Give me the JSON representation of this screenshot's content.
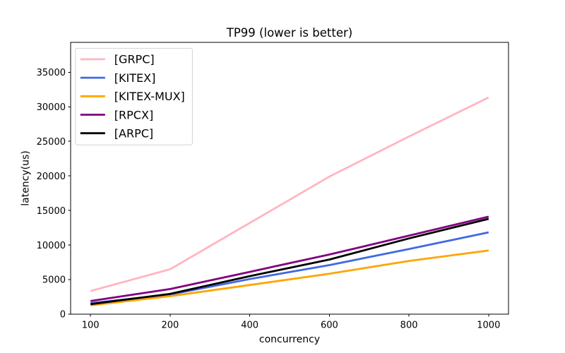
{
  "figure": {
    "background": "#ffffff",
    "frame_color": "#000000",
    "legend_border_color": "#d3d3d3"
  },
  "chart_data": {
    "type": "line",
    "title": "TP99 (lower is better)",
    "xlabel": "concurrency",
    "ylabel": "latency(us)",
    "categories": [
      "100",
      "200",
      "400",
      "600",
      "800",
      "1000"
    ],
    "yticks": [
      "0",
      "5000",
      "10000",
      "15000",
      "20000",
      "25000",
      "30000",
      "35000"
    ],
    "ytick_values": [
      0,
      5000,
      10000,
      15000,
      20000,
      25000,
      30000,
      35000
    ],
    "ylim": [
      0,
      39320
    ],
    "grid": false,
    "legend_position": "upper left",
    "series": [
      {
        "label": "[GRPC]",
        "color": "#ffb6c1",
        "values": [
          3350,
          6500,
          13200,
          19900,
          25700,
          31350
        ]
      },
      {
        "label": "[KITEX]",
        "color": "#4169e1",
        "values": [
          1600,
          2850,
          5080,
          7100,
          9420,
          11830
        ]
      },
      {
        "label": "[KITEX-MUX]",
        "color": "#ffa500",
        "values": [
          1280,
          2600,
          4220,
          5850,
          7700,
          9210
        ]
      },
      {
        "label": "[RPCX]",
        "color": "#800080",
        "values": [
          1900,
          3640,
          6120,
          8630,
          11360,
          14110
        ]
      },
      {
        "label": "[ARPC]",
        "color": "#000000",
        "values": [
          1450,
          2940,
          5500,
          7900,
          10960,
          13790
        ]
      }
    ]
  }
}
